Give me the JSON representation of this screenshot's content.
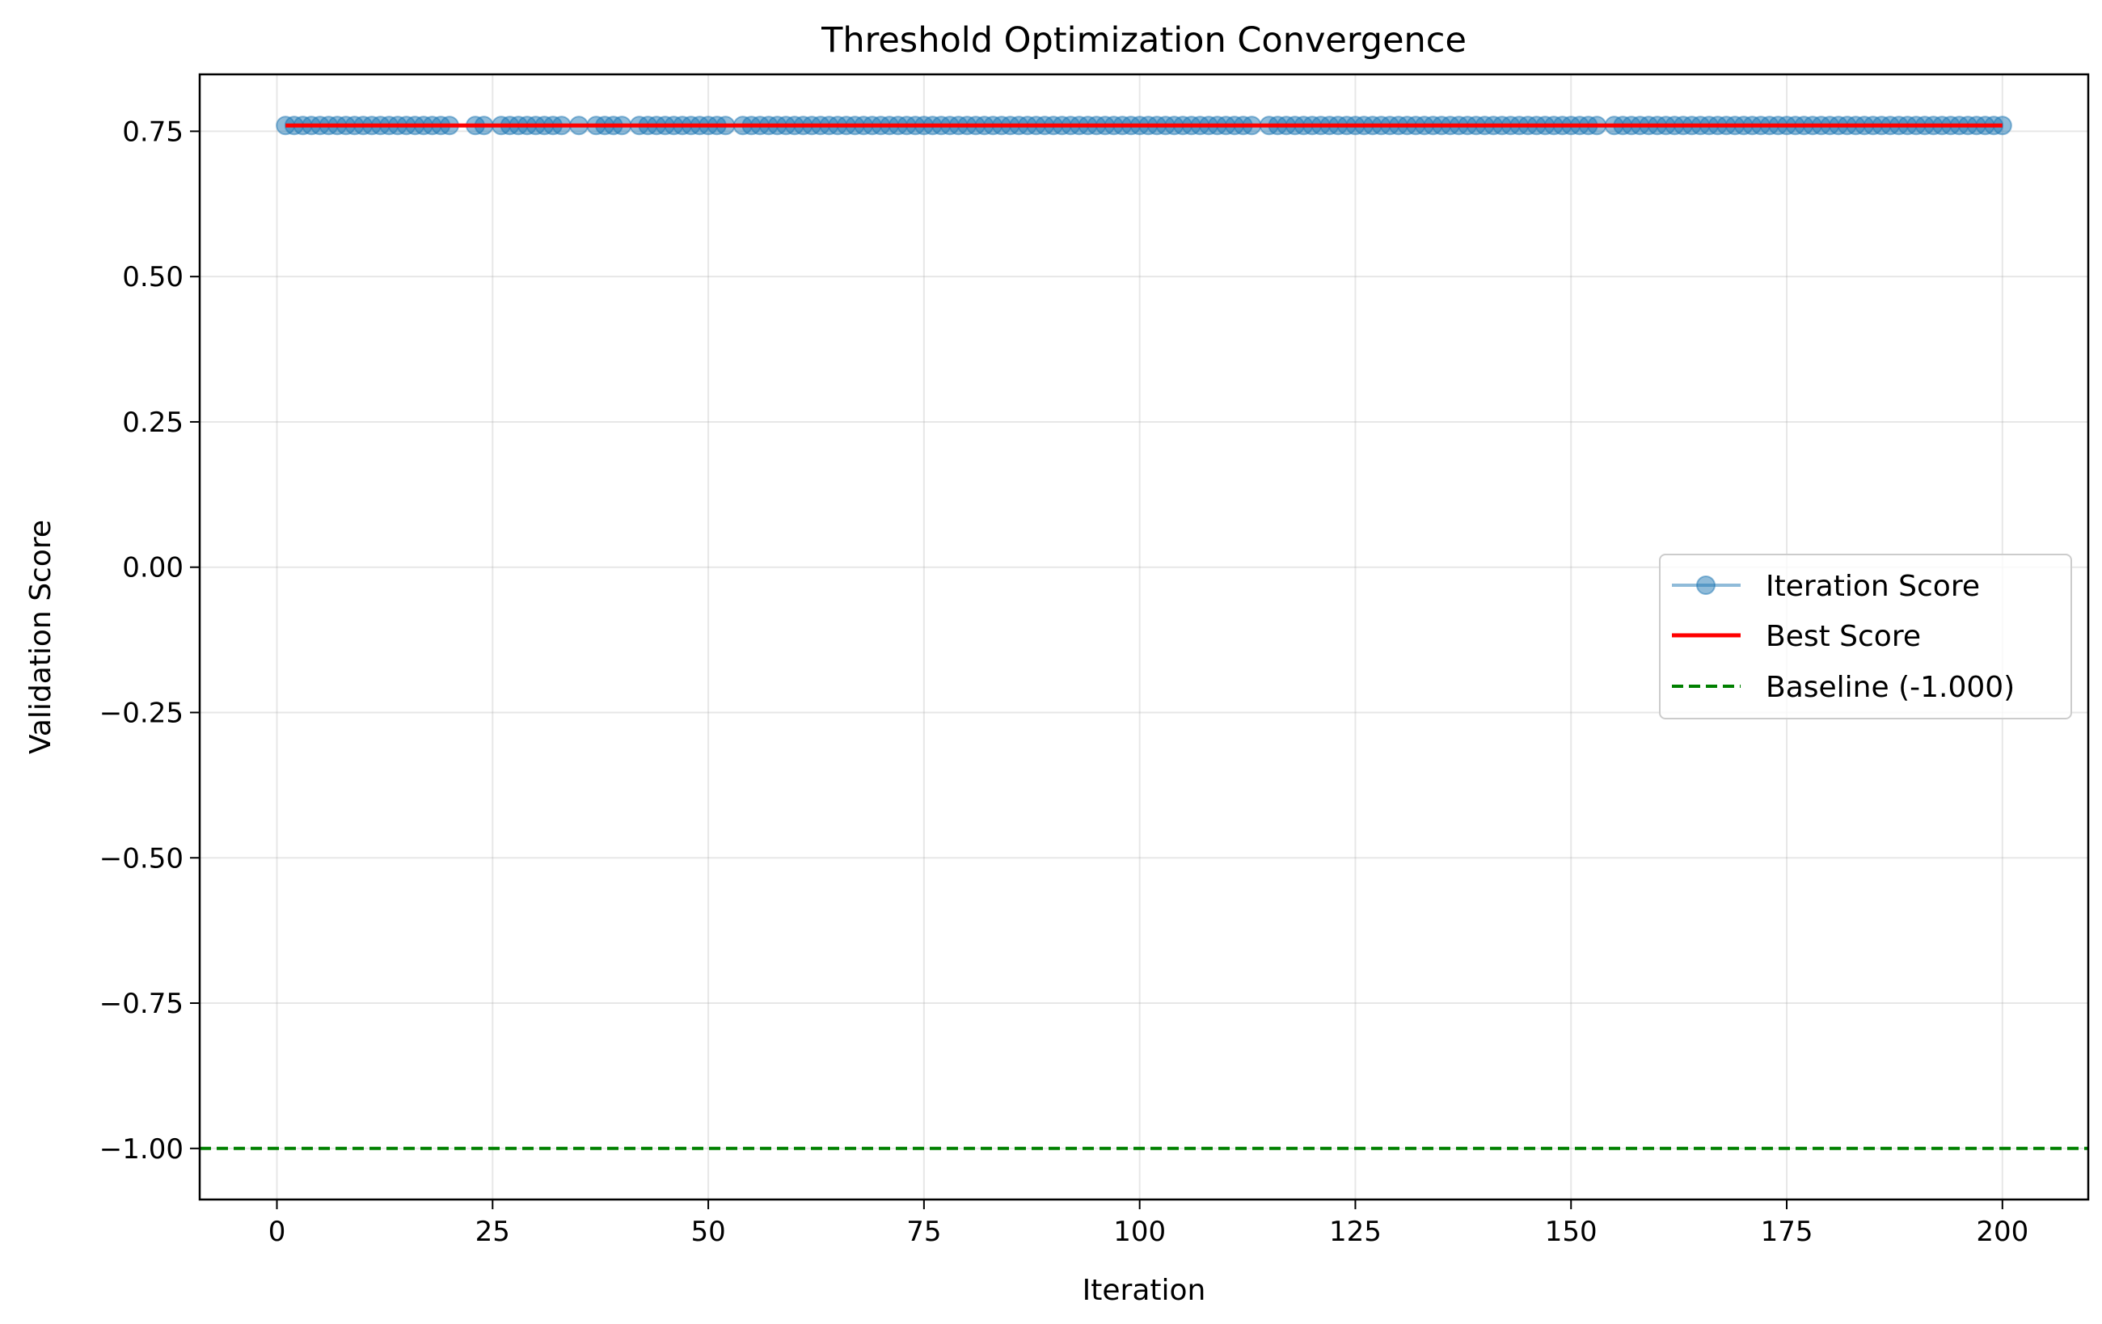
{
  "chart_data": {
    "type": "line",
    "title": "Threshold Optimization Convergence",
    "xlabel": "Iteration",
    "ylabel": "Validation Score",
    "xlim": [
      -8.95,
      209.95
    ],
    "ylim": [
      -1.0879,
      0.8479
    ],
    "xticks": [
      0,
      25,
      50,
      75,
      100,
      125,
      150,
      175,
      200
    ],
    "xtick_labels": [
      "0",
      "25",
      "50",
      "75",
      "100",
      "125",
      "150",
      "175",
      "200"
    ],
    "yticks": [
      0.75,
      0.5,
      0.25,
      0.0,
      -0.25,
      -0.5,
      -0.75,
      -1.0
    ],
    "ytick_labels": [
      "0.75",
      "0.50",
      "0.25",
      "0.00",
      "−0.25",
      "−0.50",
      "−0.75",
      "−1.00"
    ],
    "grid": true,
    "legend_position": "center-right",
    "series": [
      {
        "name": "Iteration Score",
        "style": "line-with-markers",
        "color": "#1f77b4",
        "x_start": 1,
        "x_end": 200,
        "value": 0.76,
        "missing_x": [
          21,
          22,
          25,
          34,
          36,
          41,
          53,
          114,
          154
        ],
        "note_values": "all iterations score 0.76"
      },
      {
        "name": "Best Score",
        "style": "solid",
        "color": "#ff0000",
        "x": [
          1,
          200
        ],
        "y": [
          0.76,
          0.76
        ]
      },
      {
        "name": "Baseline (-1.000)",
        "style": "dashed",
        "color": "#008000",
        "y": -1.0
      }
    ]
  }
}
